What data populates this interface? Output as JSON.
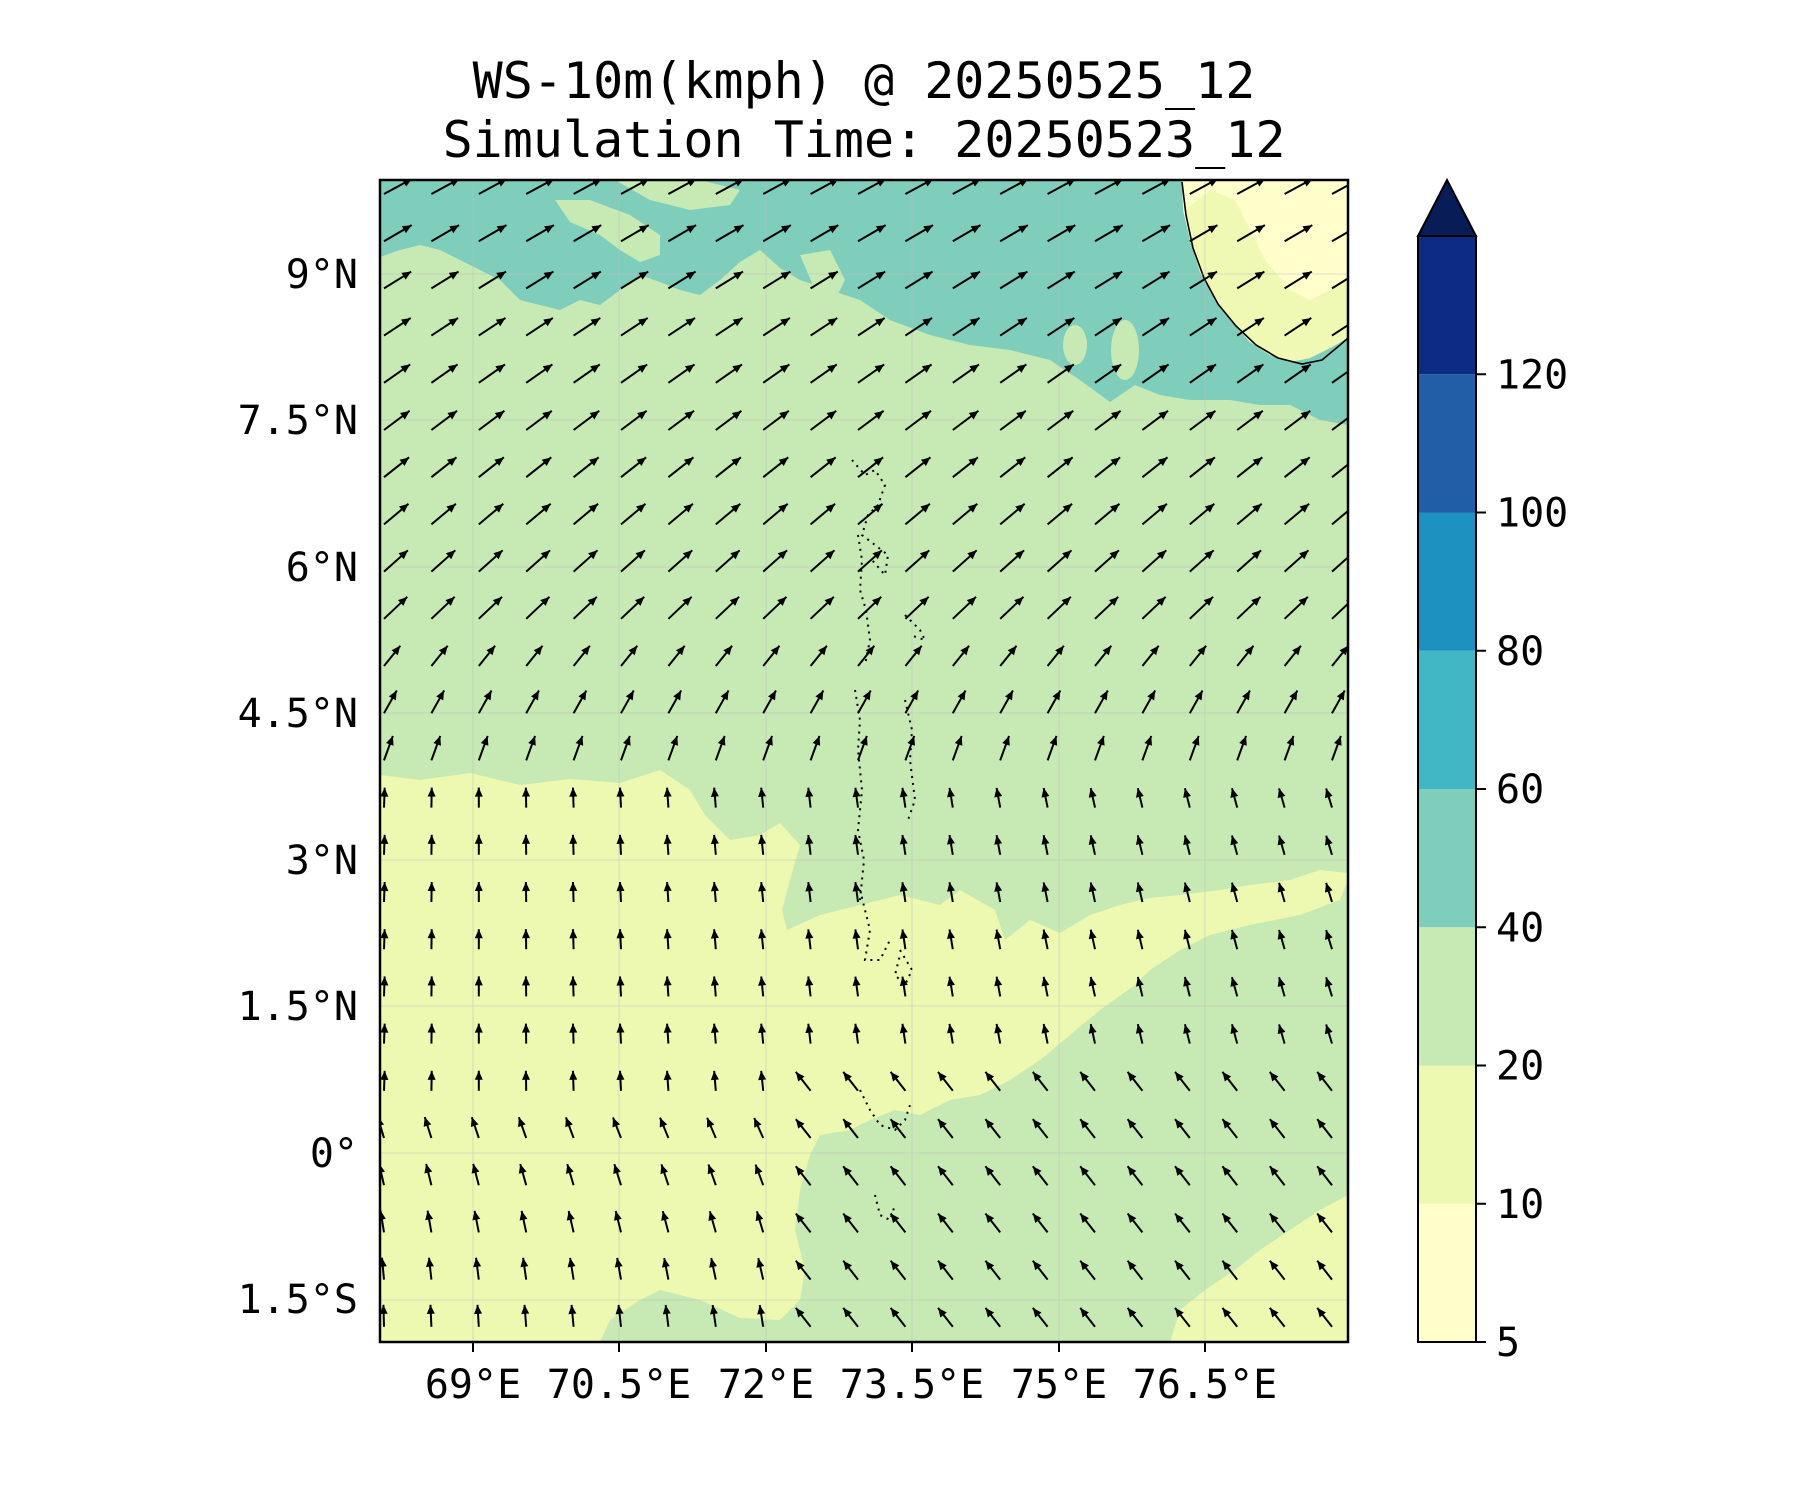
{
  "title": {
    "line1": "WS-10m(kmph) @ 20250525_12",
    "line2": "Simulation Time: 20250523_12"
  },
  "map": {
    "lat_ticks": [
      "9°N",
      "7.5°N",
      "6°N",
      "4.5°N",
      "3°N",
      "1.5°N",
      "0°",
      "1.5°S"
    ],
    "lon_ticks": [
      "69°E",
      "70.5°E",
      "72°E",
      "73.5°E",
      "75°E",
      "76.5°E"
    ],
    "extent": {
      "lon": [
        68.0,
        77.9
      ],
      "lat": [
        -1.9,
        10.0
      ]
    }
  },
  "colorbar": {
    "levels": [
      5,
      10,
      20,
      40,
      60,
      80,
      100,
      120
    ],
    "labels": [
      "5",
      "10",
      "20",
      "40",
      "60",
      "80",
      "100",
      "120"
    ],
    "colors": [
      "#ffffcc",
      "#edf8b1",
      "#c7e9b4",
      "#7fcdbb",
      "#41b6c4",
      "#1d91c0",
      "#225ea8",
      "#0c2c84"
    ],
    "extend": "max",
    "extend_color": "#081d58"
  },
  "colors": {
    "land": "#ffffcc",
    "band_10_20": "#edf8b1",
    "band_20_40": "#c7e9b4",
    "band_40_60": "#7fcdbb",
    "arrows": "#000000"
  },
  "icons": [
    "wind-vector-arrow",
    "coastline",
    "maldives-atoll"
  ]
}
